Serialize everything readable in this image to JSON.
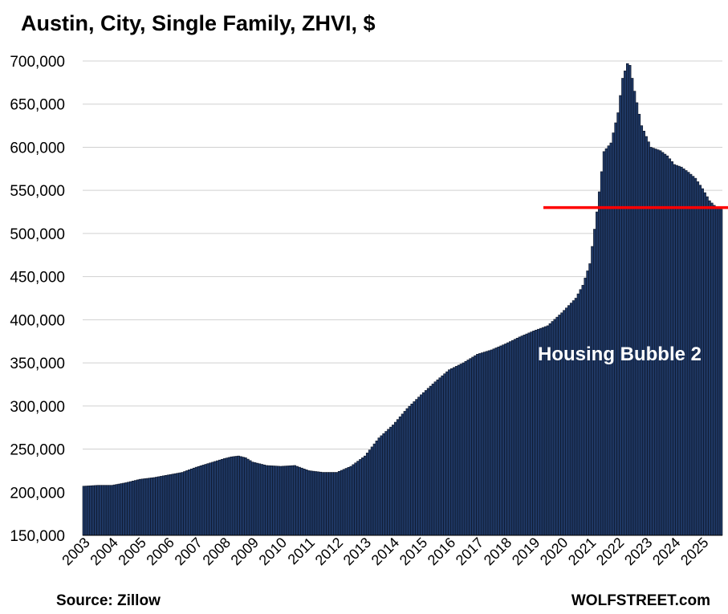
{
  "chart_data": {
    "type": "bar",
    "title": "Austin, City, Single Family, ZHVI, $",
    "xlabel": "",
    "ylabel": "",
    "ylim": [
      150000,
      700000
    ],
    "yticks": [
      150000,
      200000,
      250000,
      300000,
      350000,
      400000,
      450000,
      500000,
      550000,
      600000,
      650000,
      700000
    ],
    "ytick_labels": [
      "150,000",
      "200,000",
      "250,000",
      "300,000",
      "350,000",
      "400,000",
      "450,000",
      "500,000",
      "550,000",
      "600,000",
      "650,000",
      "700,000"
    ],
    "xtick_labels": [
      "2003",
      "2004",
      "2005",
      "2006",
      "2007",
      "2008",
      "2009",
      "2010",
      "2011",
      "2012",
      "2013",
      "2014",
      "2015",
      "2016",
      "2017",
      "2018",
      "2019",
      "2020",
      "2021",
      "2022",
      "2023",
      "2024",
      "2025"
    ],
    "grid": true,
    "frequency": "monthly",
    "anchors": [
      [
        "2003-01",
        207000
      ],
      [
        "2003-07",
        208000
      ],
      [
        "2004-01",
        208000
      ],
      [
        "2004-07",
        211000
      ],
      [
        "2005-01",
        215000
      ],
      [
        "2005-07",
        217000
      ],
      [
        "2006-01",
        220000
      ],
      [
        "2006-07",
        223000
      ],
      [
        "2007-01",
        229000
      ],
      [
        "2007-07",
        234000
      ],
      [
        "2008-01",
        239000
      ],
      [
        "2008-04",
        241000
      ],
      [
        "2008-07",
        242000
      ],
      [
        "2008-10",
        240000
      ],
      [
        "2009-01",
        235000
      ],
      [
        "2009-07",
        231000
      ],
      [
        "2010-01",
        230000
      ],
      [
        "2010-07",
        231000
      ],
      [
        "2011-01",
        225000
      ],
      [
        "2011-07",
        223000
      ],
      [
        "2012-01",
        223000
      ],
      [
        "2012-07",
        230000
      ],
      [
        "2013-01",
        242000
      ],
      [
        "2013-07",
        263000
      ],
      [
        "2014-01",
        278000
      ],
      [
        "2014-07",
        297000
      ],
      [
        "2015-01",
        313000
      ],
      [
        "2015-07",
        328000
      ],
      [
        "2016-01",
        342000
      ],
      [
        "2016-07",
        350000
      ],
      [
        "2017-01",
        360000
      ],
      [
        "2017-07",
        365000
      ],
      [
        "2018-01",
        372000
      ],
      [
        "2018-07",
        380000
      ],
      [
        "2019-01",
        387000
      ],
      [
        "2019-07",
        393000
      ],
      [
        "2020-01",
        408000
      ],
      [
        "2020-07",
        425000
      ],
      [
        "2020-10",
        440000
      ],
      [
        "2021-01",
        465000
      ],
      [
        "2021-04",
        525000
      ],
      [
        "2021-07",
        595000
      ],
      [
        "2021-10",
        605000
      ],
      [
        "2022-01",
        640000
      ],
      [
        "2022-03",
        680000
      ],
      [
        "2022-05",
        697000
      ],
      [
        "2022-06",
        695000
      ],
      [
        "2022-08",
        665000
      ],
      [
        "2022-11",
        625000
      ],
      [
        "2023-03",
        600000
      ],
      [
        "2023-07",
        596000
      ],
      [
        "2023-10",
        590000
      ],
      [
        "2024-01",
        580000
      ],
      [
        "2024-04",
        577000
      ],
      [
        "2024-07",
        571000
      ],
      [
        "2024-10",
        564000
      ],
      [
        "2025-01",
        552000
      ],
      [
        "2025-04",
        538000
      ],
      [
        "2025-07",
        530000
      ],
      [
        "2025-09",
        528000
      ]
    ],
    "reference_line": {
      "value": 530000,
      "color": "#ff0000"
    },
    "annotation": "Housing Bubble 2",
    "bar_color": "#1f3864"
  },
  "source": "Source: Zillow",
  "brand": "WOLFSTREET.com"
}
